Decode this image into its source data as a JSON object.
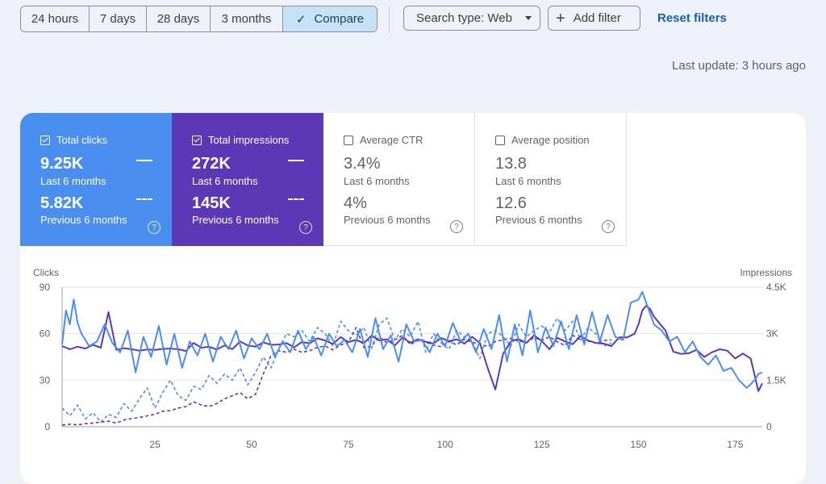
{
  "toolbar": {
    "ranges": [
      "24 hours",
      "7 days",
      "28 days",
      "3 months"
    ],
    "compare_label": "Compare",
    "search_type_label": "Search type: Web",
    "add_filter_label": "Add filter",
    "reset_label": "Reset filters"
  },
  "last_update": "Last update: 3 hours ago",
  "metrics": [
    {
      "title": "Total clicks",
      "value": "9.25K",
      "period": "Last 6 months",
      "prev_value": "5.82K",
      "prev_period": "Previous 6 months",
      "checked": true,
      "color": "#4a8ef0"
    },
    {
      "title": "Total impressions",
      "value": "272K",
      "period": "Last 6 months",
      "prev_value": "145K",
      "prev_period": "Previous 6 months",
      "checked": true,
      "color": "#5d38b6"
    },
    {
      "title": "Average CTR",
      "value": "3.4%",
      "period": "Last 6 months",
      "prev_value": "4%",
      "prev_period": "Previous 6 months",
      "checked": false
    },
    {
      "title": "Average position",
      "value": "13.8",
      "period": "Last 6 months",
      "prev_value": "12.6",
      "prev_period": "Previous 6 months",
      "checked": false
    }
  ],
  "chart_data": {
    "type": "line",
    "left_axis_label": "Clicks",
    "right_axis_label": "Impressions",
    "left_ticks": [
      "0",
      "30",
      "60",
      "90"
    ],
    "right_ticks": [
      "0",
      "1.5K",
      "3K",
      "4.5K"
    ],
    "x_ticks": [
      "25",
      "50",
      "75",
      "100",
      "125",
      "150",
      "175"
    ],
    "xlim": [
      1,
      182
    ],
    "ylim_left": [
      0,
      90
    ],
    "ylim_right": [
      0,
      4500
    ],
    "series_colors": {
      "clicks": "#4a8ef0",
      "impressions": "#5d38b6"
    },
    "series": [
      {
        "name": "Clicks (Last 6 months)",
        "axis": "left",
        "style": "solid",
        "color": "#4a8ef0",
        "x": [
          1,
          2,
          3,
          4,
          5,
          6,
          8,
          10,
          12,
          14,
          16,
          18,
          20,
          22,
          24,
          26,
          28,
          30,
          32,
          34,
          36,
          38,
          40,
          42,
          44,
          46,
          48,
          50,
          52,
          54,
          56,
          58,
          60,
          62,
          64,
          66,
          68,
          70,
          72,
          74,
          76,
          78,
          80,
          82,
          84,
          86,
          88,
          90,
          92,
          94,
          96,
          98,
          100,
          102,
          104,
          106,
          108,
          110,
          112,
          114,
          116,
          118,
          120,
          122,
          124,
          126,
          128,
          130,
          132,
          134,
          136,
          138,
          140,
          142,
          144,
          146,
          148,
          150,
          151,
          152,
          153,
          154,
          156,
          158,
          160,
          162,
          164,
          166,
          168,
          170,
          172,
          174,
          176,
          178,
          180,
          181,
          182
        ],
        "y": [
          53,
          75,
          66,
          82,
          67,
          60,
          52,
          55,
          66,
          54,
          48,
          62,
          35,
          58,
          45,
          65,
          40,
          60,
          38,
          55,
          46,
          60,
          42,
          58,
          50,
          62,
          44,
          57,
          50,
          60,
          45,
          55,
          48,
          62,
          50,
          58,
          46,
          60,
          52,
          56,
          48,
          63,
          45,
          70,
          50,
          59,
          42,
          66,
          55,
          56,
          48,
          60,
          52,
          67,
          55,
          60,
          48,
          63,
          50,
          72,
          42,
          66,
          46,
          75,
          48,
          64,
          52,
          68,
          50,
          72,
          53,
          74,
          55,
          72,
          58,
          56,
          80,
          82,
          87,
          80,
          73,
          66,
          62,
          55,
          58,
          48,
          55,
          45,
          40,
          46,
          36,
          38,
          30,
          25,
          30,
          34,
          35
        ]
      },
      {
        "name": "Clicks (Previous 6 months)",
        "axis": "left",
        "style": "dashed",
        "color": "#4a8ef0",
        "x": [
          1,
          3,
          5,
          7,
          9,
          11,
          13,
          15,
          17,
          19,
          21,
          23,
          25,
          27,
          29,
          31,
          33,
          35,
          37,
          39,
          41,
          43,
          45,
          47,
          49,
          51,
          53,
          55,
          57,
          59,
          61,
          63,
          65,
          67,
          69,
          71,
          73,
          75,
          77,
          79,
          81,
          83,
          85,
          87,
          89,
          91,
          93,
          95,
          97,
          99,
          101,
          103,
          105,
          107,
          109,
          111,
          113,
          115,
          117,
          119,
          121,
          123,
          125,
          127,
          129,
          131,
          133,
          135,
          137,
          139,
          141,
          143
        ],
        "y": [
          12,
          7,
          14,
          5,
          9,
          3,
          8,
          6,
          15,
          10,
          18,
          25,
          12,
          22,
          30,
          20,
          17,
          26,
          24,
          33,
          28,
          34,
          30,
          38,
          27,
          35,
          45,
          38,
          50,
          60,
          58,
          62,
          55,
          64,
          60,
          52,
          68,
          62,
          59,
          64,
          50,
          66,
          70,
          56,
          63,
          58,
          68,
          48,
          60,
          54,
          50,
          62,
          58,
          55,
          44,
          60,
          62,
          58,
          52,
          66,
          58,
          62,
          65,
          61,
          70,
          62,
          68,
          56,
          64,
          60,
          52,
          54
        ]
      },
      {
        "name": "Impressions (Last 6 months)",
        "axis": "right",
        "style": "solid",
        "color": "#5d38b6",
        "x": [
          1,
          3,
          5,
          7,
          9,
          11,
          13,
          15,
          17,
          19,
          21,
          23,
          25,
          27,
          29,
          31,
          33,
          35,
          37,
          39,
          41,
          43,
          45,
          47,
          49,
          51,
          53,
          55,
          57,
          59,
          61,
          63,
          65,
          67,
          69,
          71,
          73,
          75,
          77,
          79,
          81,
          83,
          85,
          87,
          89,
          91,
          93,
          95,
          97,
          99,
          101,
          103,
          105,
          107,
          109,
          111,
          113,
          115,
          117,
          119,
          121,
          123,
          125,
          127,
          129,
          131,
          133,
          135,
          137,
          139,
          141,
          143,
          145,
          147,
          149,
          150,
          151,
          152,
          153,
          154,
          155,
          157,
          159,
          161,
          163,
          165,
          167,
          169,
          171,
          173,
          175,
          177,
          179,
          181,
          182
        ],
        "y": [
          2600,
          2500,
          2580,
          2520,
          2640,
          2550,
          3700,
          2480,
          2530,
          2500,
          2450,
          2490,
          2480,
          2510,
          2520,
          2500,
          2440,
          2700,
          2550,
          2580,
          2490,
          2620,
          2500,
          2750,
          2620,
          2580,
          2720,
          2640,
          2650,
          2700,
          2560,
          2730,
          2690,
          2850,
          2780,
          2670,
          2890,
          2730,
          2800,
          2690,
          2940,
          2780,
          2820,
          2620,
          2880,
          2710,
          2820,
          2740,
          2680,
          2860,
          2760,
          2820,
          2680,
          2900,
          2700,
          1900,
          1200,
          2350,
          2750,
          2830,
          2700,
          2950,
          2760,
          2500,
          2870,
          2750,
          2660,
          2930,
          2780,
          2700,
          2680,
          2600,
          2880,
          2880,
          3000,
          3300,
          3750,
          3900,
          3800,
          3550,
          3400,
          3100,
          2420,
          2350,
          2370,
          2480,
          2250,
          2400,
          2500,
          2450,
          2200,
          2360,
          2200,
          1150,
          1400
        ]
      },
      {
        "name": "Impressions (Previous 6 months)",
        "axis": "right",
        "style": "dashed",
        "color": "#5d38b6",
        "x": [
          1,
          3,
          5,
          7,
          9,
          11,
          13,
          15,
          17,
          19,
          21,
          23,
          25,
          27,
          29,
          31,
          33,
          35,
          37,
          39,
          41,
          43,
          45,
          47,
          49,
          51,
          53,
          55,
          57,
          59,
          61,
          63,
          65,
          67,
          69,
          71,
          73,
          75,
          77,
          79,
          81,
          83,
          85,
          87,
          89,
          91,
          93,
          95,
          97,
          99,
          101,
          103,
          105,
          107,
          109,
          111,
          113,
          115,
          117,
          119,
          121,
          123,
          125,
          127,
          129,
          131,
          133,
          135,
          137,
          139,
          141,
          143
        ],
        "y": [
          50,
          80,
          60,
          100,
          120,
          150,
          180,
          120,
          220,
          260,
          300,
          350,
          400,
          500,
          520,
          600,
          650,
          800,
          700,
          650,
          750,
          900,
          1000,
          1100,
          900,
          1050,
          1700,
          2300,
          2450,
          2400,
          2500,
          2400,
          2450,
          2560,
          2600,
          2480,
          2640,
          2720,
          3200,
          2550,
          2600,
          2900,
          2700,
          2800,
          2950,
          2650,
          2780,
          2720,
          2630,
          2580,
          2750,
          2640,
          2820,
          2720,
          2680,
          2580,
          2750,
          2800,
          2850,
          2760,
          2720,
          2880,
          2780,
          2900,
          2740,
          2620,
          2950,
          2800,
          2760,
          2700,
          2780,
          2800
        ]
      }
    ]
  }
}
